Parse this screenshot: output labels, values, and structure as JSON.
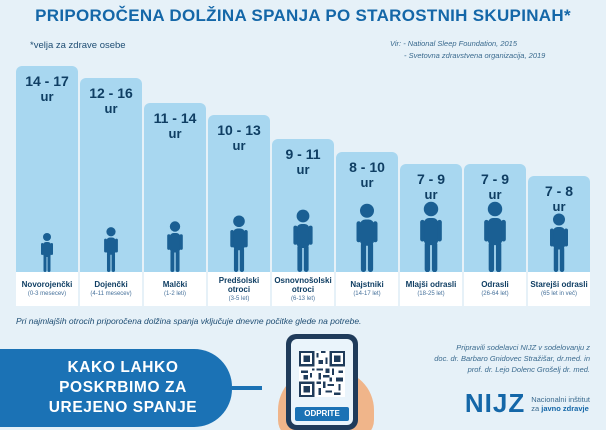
{
  "title": "PRIPOROČENA DOLŽINA SPANJA PO STAROSTNIH SKUPINAH*",
  "subnote": "*velja za zdrave osebe",
  "sources": {
    "line1": "Vir:  - National Sleep Foundation, 2015",
    "line2": "- Svetovna zdravstvena organizacija, 2019"
  },
  "groups": [
    {
      "hours": "14 - 17",
      "unit": "ur",
      "name": "Novorojenčki",
      "age": "(0-3 mesecev)",
      "min_h": 14,
      "max_h": 17,
      "icon": "newborn-icon"
    },
    {
      "hours": "12 - 16",
      "unit": "ur",
      "name": "Dojenčki",
      "age": "(4-11 mesecev)",
      "min_h": 12,
      "max_h": 16,
      "icon": "infant-icon"
    },
    {
      "hours": "11 - 14",
      "unit": "ur",
      "name": "Malčki",
      "age": "(1-2 leti)",
      "min_h": 11,
      "max_h": 14,
      "icon": "toddler-icon"
    },
    {
      "hours": "10 - 13",
      "unit": "ur",
      "name": "Predšolski otroci",
      "age": "(3-5 let)",
      "min_h": 10,
      "max_h": 13,
      "icon": "preschooler-icon"
    },
    {
      "hours": "9 - 11",
      "unit": "ur",
      "name": "Osnovnošolski otroci",
      "age": "(6-13 let)",
      "min_h": 9,
      "max_h": 11,
      "icon": "schoolchild-icon"
    },
    {
      "hours": "8 - 10",
      "unit": "ur",
      "name": "Najstniki",
      "age": "(14-17 let)",
      "min_h": 8,
      "max_h": 10,
      "icon": "teenager-icon"
    },
    {
      "hours": "7 - 9",
      "unit": "ur",
      "name": "Mlajši odrasli",
      "age": "(18-25 let)",
      "min_h": 7,
      "max_h": 9,
      "icon": "young-adult-icon"
    },
    {
      "hours": "7 - 9",
      "unit": "ur",
      "name": "Odrasli",
      "age": "(26-64 let)",
      "min_h": 7,
      "max_h": 9,
      "icon": "adult-icon"
    },
    {
      "hours": "7 - 8",
      "unit": "ur",
      "name": "Starejši odrasli",
      "age": "(65 let in več)",
      "min_h": 7,
      "max_h": 8,
      "icon": "older-adult-icon"
    }
  ],
  "footnote": "Pri najmlajših otrocih priporočena dolžina spanja vključuje dnevne počitke glede na potrebe.",
  "banner": {
    "line1": "KAKO LAHKO",
    "line2": "POSKRBIMO ZA",
    "line3": "UREJENO SPANJE"
  },
  "phone": {
    "button_label": "ODPRITE"
  },
  "credits": {
    "line1": "Pripravili sodelavci NIJZ v sodelovanju z",
    "line2": "doc. dr. Barbaro Gnidovec Stražišar, dr.med. in",
    "line3": "prof. dr. Lejo Dolenc Grošelj dr. med."
  },
  "logo": {
    "mark": "NIJZ",
    "line1": "Nacionalni inštitut",
    "line2_prefix": "za ",
    "line2_bold": "javno zdravje"
  },
  "colors": {
    "bar": "#a8d7f0",
    "figure": "#1a5f93",
    "banner": "#1b72b5",
    "title": "#1467a8"
  }
}
